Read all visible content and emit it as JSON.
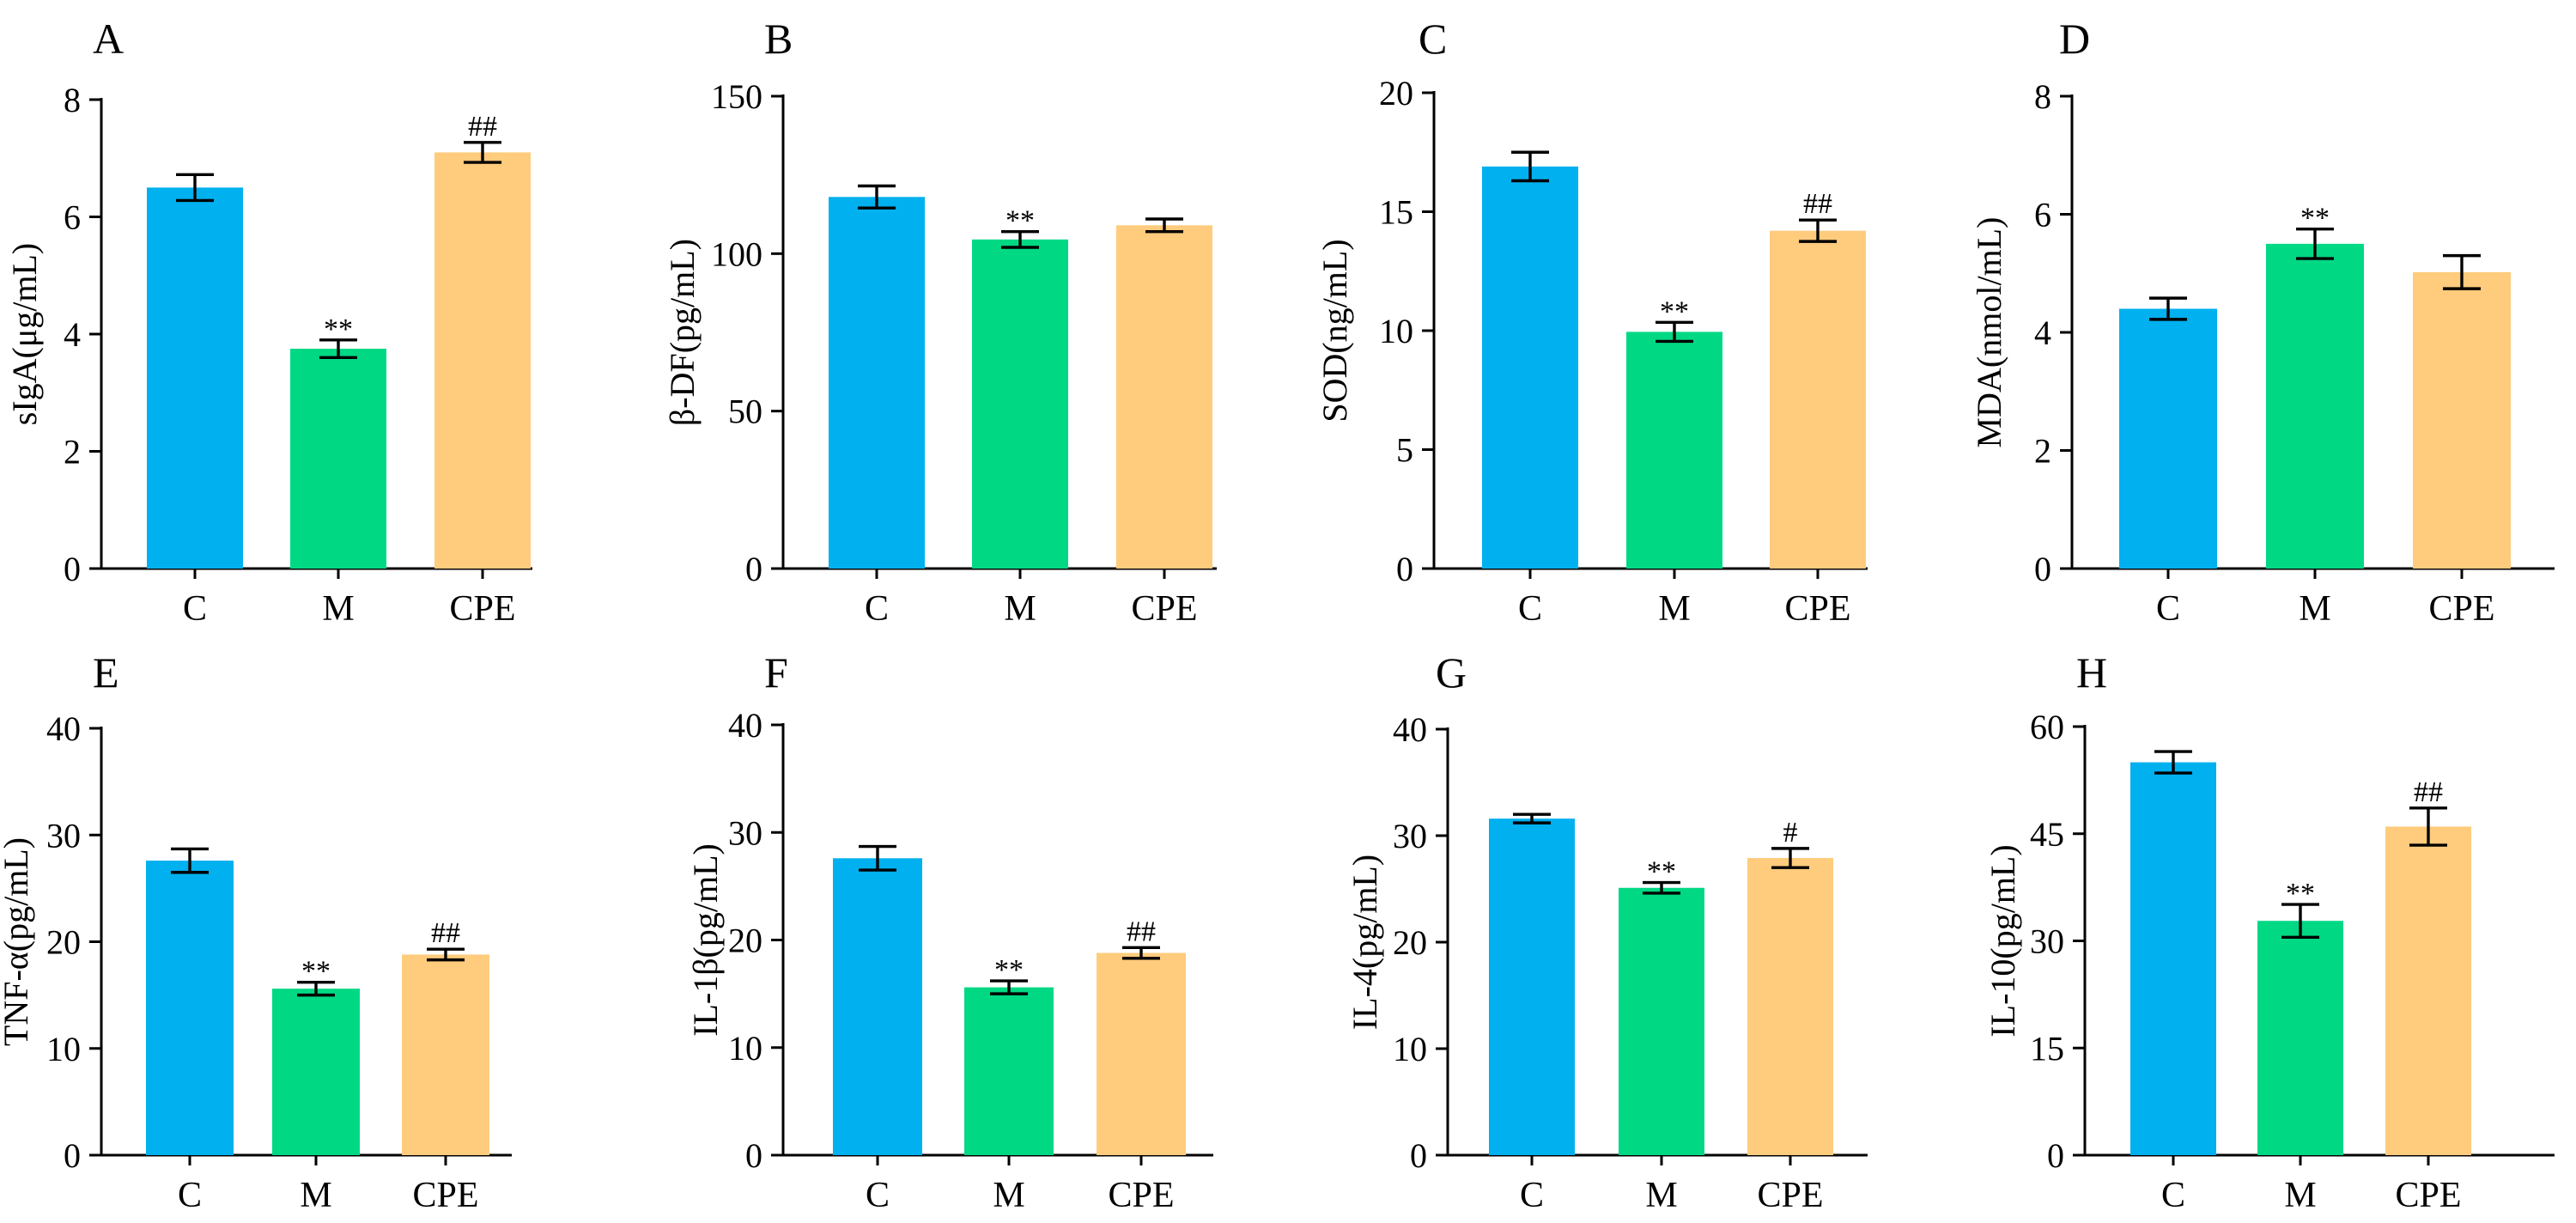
{
  "colors": {
    "C": "#00b0ef",
    "M": "#00d884",
    "CPE": "#ffcb7c"
  },
  "chart_data": [
    {
      "type": "bar",
      "panel": "A",
      "ylabel": "sIgA(μg/mL)",
      "ylim": [
        0,
        8
      ],
      "yticks": [
        0,
        2,
        4,
        6,
        8
      ],
      "categories": [
        "C",
        "M",
        "CPE"
      ],
      "values": [
        6.5,
        3.75,
        7.1
      ],
      "errors": [
        0.22,
        0.15,
        0.17
      ],
      "annotations": [
        "",
        "**",
        "##"
      ]
    },
    {
      "type": "bar",
      "panel": "B",
      "ylabel": "β-DF(pg/mL)",
      "ylim": [
        0,
        150
      ],
      "yticks": [
        0,
        50,
        100,
        150
      ],
      "categories": [
        "C",
        "M",
        "CPE"
      ],
      "values": [
        118,
        104.5,
        109
      ],
      "errors": [
        3.5,
        2.5,
        2
      ],
      "annotations": [
        "",
        "**",
        ""
      ]
    },
    {
      "type": "bar",
      "panel": "C",
      "ylabel": "SOD(ng/mL)",
      "ylim": [
        0,
        20
      ],
      "yticks": [
        0,
        5,
        10,
        15,
        20
      ],
      "categories": [
        "C",
        "M",
        "CPE"
      ],
      "values": [
        16.9,
        9.95,
        14.2
      ],
      "errors": [
        0.6,
        0.4,
        0.45
      ],
      "annotations": [
        "",
        "**",
        "##"
      ]
    },
    {
      "type": "bar",
      "panel": "D",
      "ylabel": "MDA(nmol/mL)",
      "ylim": [
        0,
        8
      ],
      "yticks": [
        0,
        2,
        4,
        6,
        8
      ],
      "categories": [
        "C",
        "M",
        "CPE"
      ],
      "values": [
        4.4,
        5.5,
        5.02
      ],
      "errors": [
        0.18,
        0.25,
        0.28
      ],
      "annotations": [
        "",
        "**",
        ""
      ]
    },
    {
      "type": "bar",
      "panel": "E",
      "ylabel": "TNF-α(pg/mL)",
      "ylim": [
        0,
        40
      ],
      "yticks": [
        0,
        10,
        20,
        30,
        40
      ],
      "categories": [
        "C",
        "M",
        "CPE"
      ],
      "values": [
        27.6,
        15.6,
        18.8
      ],
      "errors": [
        1.1,
        0.6,
        0.5
      ],
      "annotations": [
        "",
        "**",
        "##"
      ]
    },
    {
      "type": "bar",
      "panel": "F",
      "ylabel": "IL-1β(pg/mL)",
      "ylim": [
        0,
        40
      ],
      "yticks": [
        0,
        10,
        20,
        30,
        40
      ],
      "categories": [
        "C",
        "M",
        "CPE"
      ],
      "values": [
        27.6,
        15.6,
        18.8
      ],
      "errors": [
        1.1,
        0.6,
        0.5
      ],
      "annotations": [
        "",
        "**",
        "##"
      ]
    },
    {
      "type": "bar",
      "panel": "G",
      "ylabel": "IL-4(pg/mL)",
      "ylim": [
        0,
        40
      ],
      "yticks": [
        0,
        10,
        20,
        30,
        40
      ],
      "categories": [
        "C",
        "M",
        "CPE"
      ],
      "values": [
        31.6,
        25.1,
        27.9
      ],
      "errors": [
        0.4,
        0.5,
        0.9
      ],
      "annotations": [
        "",
        "**",
        "#"
      ]
    },
    {
      "type": "bar",
      "panel": "H",
      "ylabel": "IL-10(pg/mL)",
      "ylim": [
        0,
        60
      ],
      "yticks": [
        0,
        15,
        30,
        45,
        60
      ],
      "categories": [
        "C",
        "M",
        "CPE"
      ],
      "values": [
        55,
        32.8,
        46
      ],
      "errors": [
        1.5,
        2.3,
        2.6
      ],
      "annotations": [
        "",
        "**",
        "##"
      ]
    }
  ]
}
